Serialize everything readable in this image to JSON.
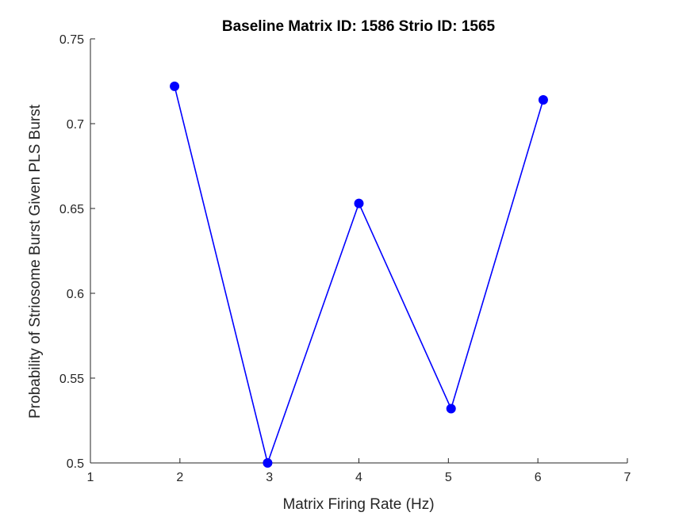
{
  "chart_data": {
    "type": "line",
    "title": "Baseline Matrix ID: 1586 Strio ID: 1565",
    "xlabel": "Matrix Firing Rate (Hz)",
    "ylabel": "Probability of Striosome Burst Given PLS Burst",
    "xlim": [
      1,
      7
    ],
    "ylim": [
      0.5,
      0.75
    ],
    "xticks": [
      "1",
      "2",
      "3",
      "4",
      "5",
      "6",
      "7"
    ],
    "yticks": [
      "0.5",
      "0.55",
      "0.6",
      "0.65",
      "0.7",
      "0.75"
    ],
    "grid": false,
    "series": [
      {
        "x": [
          1.94,
          2.98,
          4.0,
          5.03,
          6.06
        ],
        "y": [
          0.722,
          0.5,
          0.653,
          0.532,
          0.714
        ],
        "color": "#0000ff",
        "marker": "circle"
      }
    ]
  }
}
